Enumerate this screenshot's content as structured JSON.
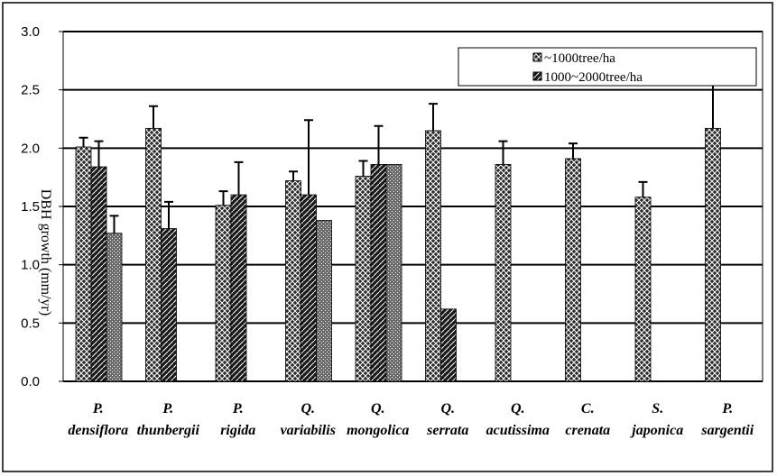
{
  "chart_data": {
    "type": "bar",
    "y_label": "DBH growth (mm/yr)",
    "categories": [
      "P. densiflora",
      "P. thunbergii",
      "P. rigida",
      "Q. variabilis",
      "Q. mongolica",
      "Q. serrata",
      "Q. acutissima",
      "C. crenata",
      "S. japonica",
      "P. sargentii"
    ],
    "series": [
      {
        "name": "~1000tree/ha",
        "color": "#2a2a2a",
        "values": [
          2.01,
          2.17,
          1.51,
          1.72,
          1.76,
          2.15,
          1.86,
          1.91,
          1.58,
          2.17
        ],
        "errors": [
          0.08,
          0.19,
          0.12,
          0.08,
          0.13,
          0.23,
          0.2,
          0.13,
          0.13,
          0.38
        ]
      },
      {
        "name": "1000~2000tree/ha",
        "color": "#1a1a1a",
        "values": [
          1.84,
          1.31,
          1.6,
          1.6,
          1.86,
          0.62,
          null,
          null,
          null,
          null
        ],
        "errors": [
          0.22,
          0.23,
          0.28,
          0.64,
          0.33,
          null,
          null,
          null,
          null,
          null
        ]
      },
      {
        "color": "#6a6a6a",
        "values": [
          1.27,
          null,
          null,
          1.38,
          1.86,
          null,
          null,
          null,
          null,
          null
        ],
        "errors": [
          0.15,
          null,
          null,
          null,
          null,
          null,
          null,
          null,
          null,
          null
        ]
      }
    ],
    "ylim": [
      0,
      3
    ],
    "yticks": [
      {
        "value": 0,
        "label": "0.0"
      },
      {
        "value": 0.5,
        "label": "0.5"
      },
      {
        "value": 1,
        "label": "1.0"
      },
      {
        "value": 1.5,
        "label": "1.5"
      },
      {
        "value": 2,
        "label": "2.0"
      },
      {
        "value": 2.5,
        "label": "2.5"
      },
      {
        "value": 3,
        "label": "3.0"
      }
    ],
    "grid": true
  }
}
